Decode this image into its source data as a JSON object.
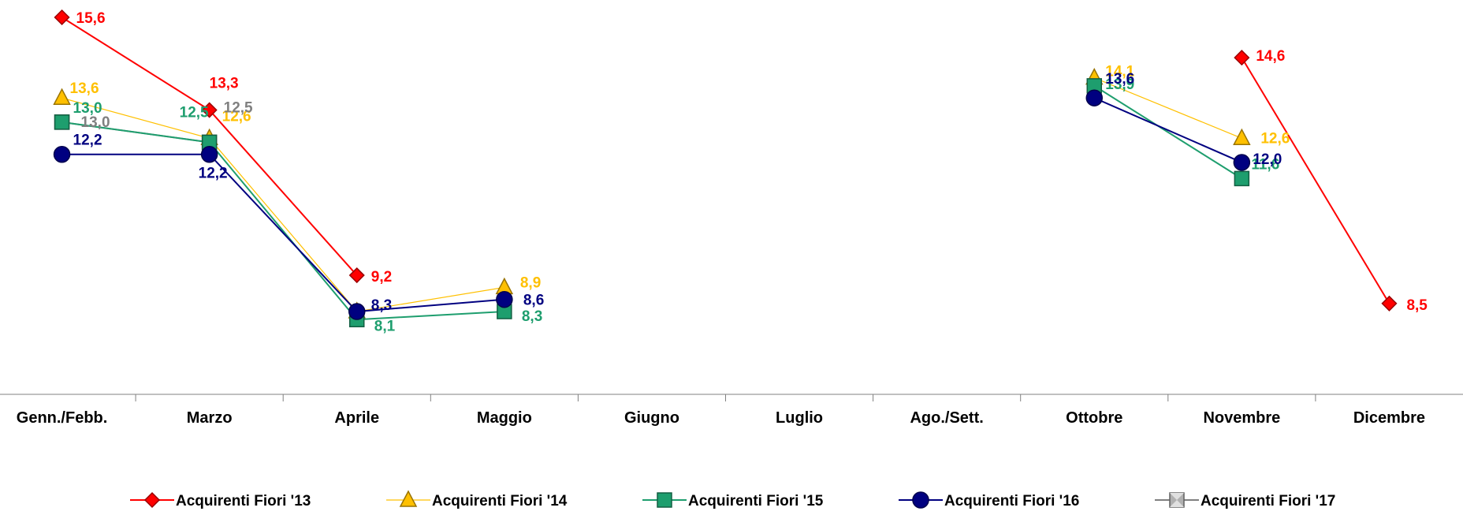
{
  "chart_data": {
    "type": "line",
    "title": "",
    "xlabel": "",
    "ylabel": "",
    "ylim": [
      6,
      16
    ],
    "grid": false,
    "legend_position": "bottom",
    "categories": [
      "Genn./Febb.",
      "Marzo",
      "Aprile",
      "Maggio",
      "Giugno",
      "Luglio",
      "Ago./Sett.",
      "Ottobre",
      "Novembre",
      "Dicembre"
    ],
    "series": [
      {
        "name": "Acquirenti Fiori '13",
        "color": "#FF0000",
        "marker": "diamond",
        "values": [
          15.6,
          13.3,
          9.2,
          null,
          null,
          null,
          null,
          null,
          14.6,
          8.5
        ],
        "labels": [
          "15,6",
          "13,3",
          "9,2",
          null,
          null,
          null,
          null,
          null,
          "14,6",
          "8,5"
        ]
      },
      {
        "name": "Acquirenti Fiori '14",
        "color": "#FFC000",
        "marker": "triangle",
        "values": [
          13.6,
          12.6,
          8.3,
          8.9,
          null,
          null,
          null,
          14.1,
          12.6,
          null
        ],
        "labels": [
          "13,6",
          "12,6",
          null,
          "8,9",
          null,
          null,
          null,
          "14,1",
          "12,6",
          null
        ]
      },
      {
        "name": "Acquirenti Fiori '15",
        "color": "#1E9E6E",
        "marker": "square",
        "values": [
          13.0,
          12.5,
          8.1,
          8.3,
          null,
          null,
          null,
          13.9,
          11.6,
          null
        ],
        "labels": [
          "13,0",
          "12,5",
          "8,1",
          "8,3",
          null,
          null,
          null,
          "13,9",
          "11,6",
          null
        ]
      },
      {
        "name": "Acquirenti Fiori '16",
        "color": "#000080",
        "marker": "circle",
        "values": [
          12.2,
          12.2,
          8.3,
          8.6,
          null,
          null,
          null,
          13.6,
          12.0,
          null
        ],
        "labels": [
          "12,2",
          "12,2",
          "8,3",
          "8,6",
          null,
          null,
          null,
          "13,6",
          "12,0",
          null
        ]
      },
      {
        "name": "Acquirenti Fiori '17",
        "color": "#808080",
        "marker": "bowtie",
        "values": [
          13.0,
          12.5,
          null,
          null,
          null,
          null,
          null,
          null,
          null,
          null
        ],
        "labels": [
          "13,0",
          "12,5",
          null,
          null,
          null,
          null,
          null,
          null,
          null,
          null
        ]
      }
    ]
  }
}
